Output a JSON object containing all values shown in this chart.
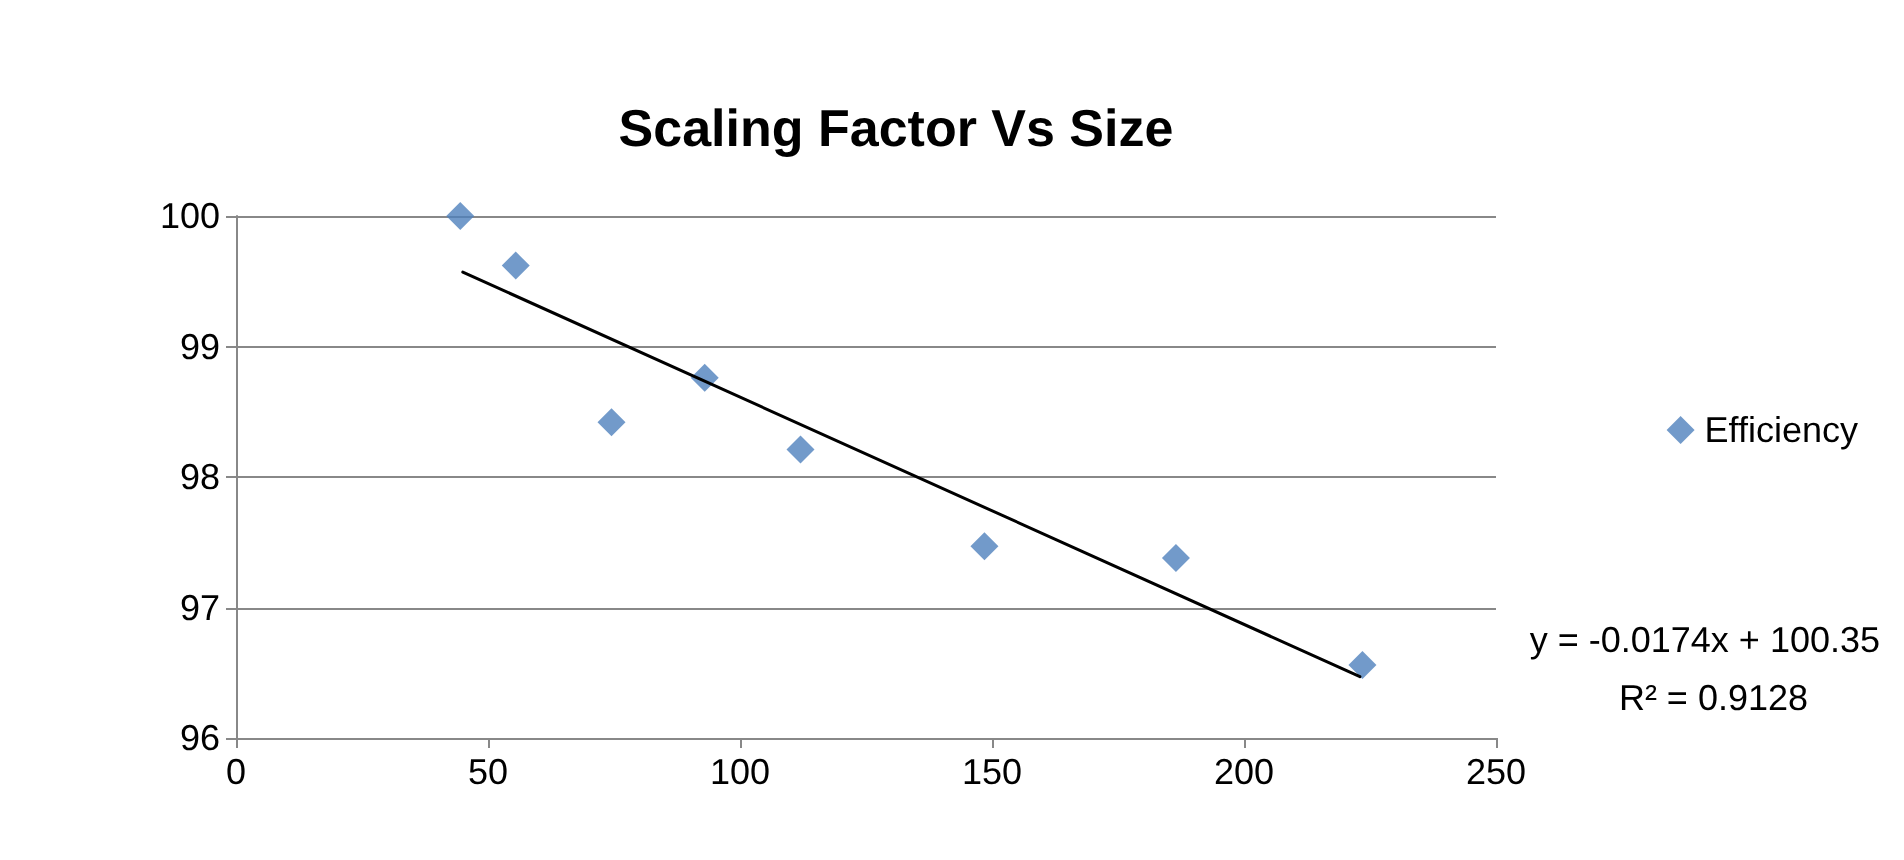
{
  "chart_data": {
    "type": "scatter",
    "title": "Scaling Factor Vs Size",
    "x": [
      44.5,
      55.5,
      74.5,
      93,
      112,
      148.5,
      186.5,
      223.5
    ],
    "series": [
      {
        "name": "Efficiency",
        "color": "#4f81bd",
        "marker": "diamond",
        "values": [
          100,
          99.62,
          98.42,
          98.76,
          98.21,
          97.47,
          97.38,
          96.56
        ]
      },
      {
        "type": "line",
        "color": "#000000",
        "marker": "none",
        "x": [
          45,
          223
        ],
        "values": [
          99.57,
          96.47
        ]
      }
    ],
    "xlim": [
      0,
      250
    ],
    "xticks": [
      0,
      50,
      100,
      150,
      200,
      250
    ],
    "ylim": [
      96,
      100
    ],
    "yticks": [
      96,
      97,
      98,
      99,
      100
    ],
    "grid": "y",
    "legend": "right",
    "annotations": [
      "y = -0.0174x + 100.35",
      "R² = 0.9128"
    ]
  }
}
